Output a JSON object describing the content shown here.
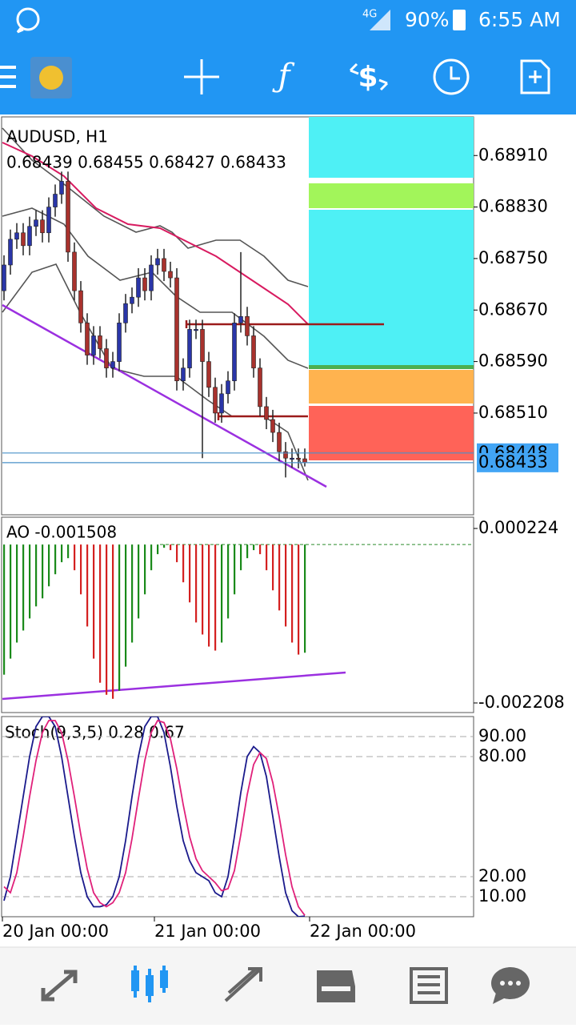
{
  "status_bar": {
    "network": "4G",
    "battery": "90%",
    "time": "6:55 AM"
  },
  "chart_data": [
    {
      "type": "candlestick",
      "title": "AUDUSD, H1",
      "subtitle": "0.68439 0.68455 0.68427 0.68433",
      "open": [
        0.687,
        0.6874,
        0.6878,
        0.6879,
        0.6877,
        0.688,
        0.6881,
        0.6879,
        0.6883,
        0.6885,
        0.6887,
        0.6876,
        0.687,
        0.6865,
        0.686,
        0.6863,
        0.6861,
        0.6858,
        0.6859,
        0.6865,
        0.6868,
        0.6869,
        0.6872,
        0.687,
        0.6874,
        0.6875,
        0.6873,
        0.6872,
        0.6856,
        0.6858,
        0.6864,
        0.6864,
        0.6859,
        0.6855,
        0.6851,
        0.6854,
        0.6856,
        0.6865,
        0.6866,
        0.6863,
        0.6858,
        0.6852,
        0.685,
        0.6848,
        0.6845,
        0.6844,
        0.6844,
        0.68439
      ],
      "high": [
        0.68755,
        0.68795,
        0.68805,
        0.68805,
        0.68815,
        0.68825,
        0.68825,
        0.68845,
        0.68865,
        0.68885,
        0.68885,
        0.68775,
        0.68715,
        0.68665,
        0.68645,
        0.68645,
        0.68625,
        0.68605,
        0.68665,
        0.68695,
        0.68705,
        0.68735,
        0.68735,
        0.68755,
        0.68765,
        0.68765,
        0.68745,
        0.68735,
        0.68595,
        0.68655,
        0.68655,
        0.68655,
        0.68605,
        0.68565,
        0.68555,
        0.68575,
        0.68665,
        0.6876,
        0.68675,
        0.68645,
        0.68595,
        0.68535,
        0.68515,
        0.68495,
        0.68465,
        0.68455,
        0.68455,
        0.68455
      ],
      "low": [
        0.68685,
        0.68725,
        0.68765,
        0.68755,
        0.68755,
        0.68785,
        0.68775,
        0.68775,
        0.68815,
        0.68835,
        0.68745,
        0.68685,
        0.68635,
        0.68585,
        0.68585,
        0.68595,
        0.68565,
        0.68565,
        0.68575,
        0.68635,
        0.68665,
        0.68675,
        0.68685,
        0.68685,
        0.68725,
        0.68715,
        0.68705,
        0.68545,
        0.68545,
        0.68565,
        0.68625,
        0.6844,
        0.68535,
        0.68495,
        0.68495,
        0.68525,
        0.68545,
        0.68635,
        0.68615,
        0.68565,
        0.68505,
        0.68485,
        0.68465,
        0.68435,
        0.6841,
        0.68425,
        0.68424,
        0.68427
      ],
      "close": [
        0.6874,
        0.6878,
        0.6879,
        0.6877,
        0.688,
        0.6881,
        0.6879,
        0.6883,
        0.6885,
        0.6887,
        0.6876,
        0.687,
        0.6865,
        0.686,
        0.6863,
        0.6861,
        0.6858,
        0.6859,
        0.6865,
        0.6868,
        0.6869,
        0.6872,
        0.687,
        0.6874,
        0.6875,
        0.6873,
        0.6872,
        0.6856,
        0.6858,
        0.6864,
        0.6864,
        0.6859,
        0.6855,
        0.6851,
        0.6854,
        0.6856,
        0.6865,
        0.6866,
        0.6863,
        0.6858,
        0.6852,
        0.685,
        0.6848,
        0.6845,
        0.6844,
        0.6844,
        0.68439,
        0.68433
      ],
      "up_color": "#2a36a8",
      "down_color": "#a8322d",
      "ylim": [
        0.68352,
        0.6897
      ],
      "yticks": [
        {
          "value": 0.6891,
          "label": "0.68910"
        },
        {
          "value": 0.6883,
          "label": "0.68830"
        },
        {
          "value": 0.6875,
          "label": "0.68750"
        },
        {
          "value": 0.6867,
          "label": "0.68670"
        },
        {
          "value": 0.6859,
          "label": "0.68590"
        },
        {
          "value": 0.6851,
          "label": "0.68510"
        }
      ],
      "ask": 0.68448,
      "bid": 0.68433
    },
    {
      "type": "histogram",
      "title": "AO -0.001508",
      "values": [
        -0.001814,
        -0.00159,
        -0.001366,
        -0.001198,
        -0.00103,
        -0.000862,
        -0.00075,
        -0.000582,
        -0.000414,
        -0.000246,
        -0.00019,
        -0.000358,
        -0.000694,
        -0.001142,
        -0.00159,
        -0.001926,
        -0.002094,
        -0.00215,
        -0.002038,
        -0.001702,
        -0.001366,
        -0.00103,
        -0.000694,
        -0.000358,
        -0.000134,
        -4.5e-05,
        -7.8e-05,
        -0.000246,
        -0.000526,
        -0.000806,
        -0.001086,
        -0.001254,
        -0.001422,
        -0.001478,
        -0.001366,
        -0.00103,
        -0.000694,
        -0.000358,
        -0.00019,
        -7.8e-05,
        -0.000134,
        -0.000358,
        -0.000638,
        -0.000918,
        -0.001142,
        -0.001366,
        -0.001534,
        -0.001508
      ],
      "up_color": "#1a8a1a",
      "down_color": "#d42020",
      "ylim": [
        -0.002342,
        0.000381
      ],
      "yticks": [
        0.000224,
        -0.002208
      ]
    },
    {
      "type": "line",
      "title": "Stoch(9,3,5) 0.28 0.67",
      "series": [
        {
          "color": "#1a1a8c",
          "values": [
            8,
            20,
            40,
            60,
            80,
            95,
            100,
            100,
            95,
            80,
            60,
            40,
            22,
            10,
            5,
            5,
            6,
            10,
            20,
            38,
            60,
            80,
            95,
            100,
            100,
            92,
            75,
            55,
            38,
            28,
            22,
            20,
            18,
            12,
            10,
            20,
            40,
            62,
            80,
            85,
            82,
            70,
            50,
            30,
            12,
            3,
            0,
            0.28
          ]
        },
        {
          "color": "#e0207a",
          "values": [
            15,
            12,
            22,
            40,
            60,
            78,
            92,
            98,
            98,
            92,
            78,
            60,
            41,
            24,
            12,
            7,
            5,
            7,
            12,
            22,
            39,
            59,
            78,
            92,
            98,
            97,
            89,
            74,
            56,
            40,
            29,
            23,
            20,
            17,
            13,
            14,
            23,
            41,
            61,
            76,
            82,
            79,
            67,
            50,
            31,
            15,
            5,
            0.67
          ]
        }
      ],
      "ylim": [
        0,
        100
      ],
      "yticks": [
        {
          "value": 90,
          "label": "90.00"
        },
        {
          "value": 80,
          "label": "80.00"
        },
        {
          "value": 20,
          "label": "20.00"
        },
        {
          "value": 10,
          "label": "10.00"
        }
      ],
      "x_labels": [
        "20 Jan 00:00",
        "21 Jan 00:00",
        "22 Jan 00:00"
      ]
    }
  ]
}
